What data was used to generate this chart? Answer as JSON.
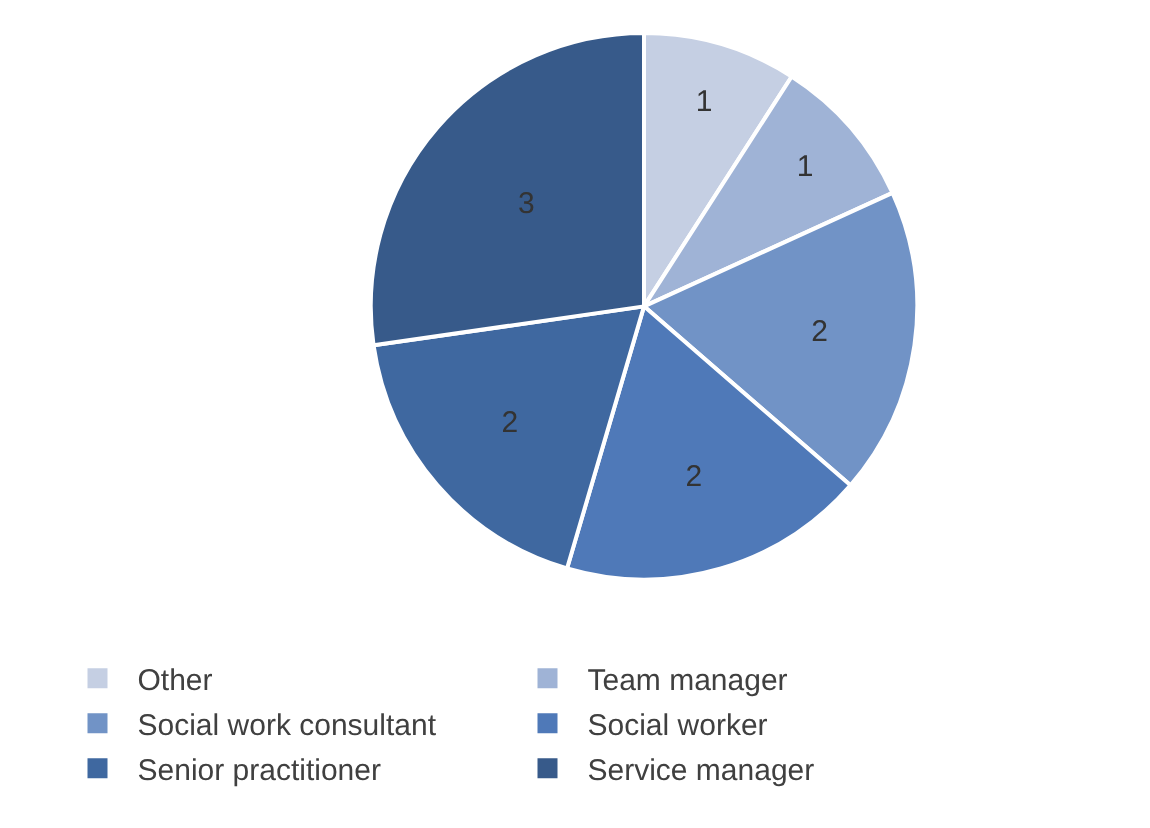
{
  "chart_data": {
    "type": "pie",
    "categories": [
      "Other",
      "Team manager",
      "Social work consultant",
      "Social worker",
      "Senior practitioner",
      "Service manager"
    ],
    "values": [
      1,
      1,
      2,
      2,
      2,
      3
    ],
    "colors": [
      "#c5cfe3",
      "#9fb3d6",
      "#7193c6",
      "#4f79b8",
      "#3f68a0",
      "#375a8a"
    ],
    "data_labels": true,
    "legend": "bottom"
  }
}
